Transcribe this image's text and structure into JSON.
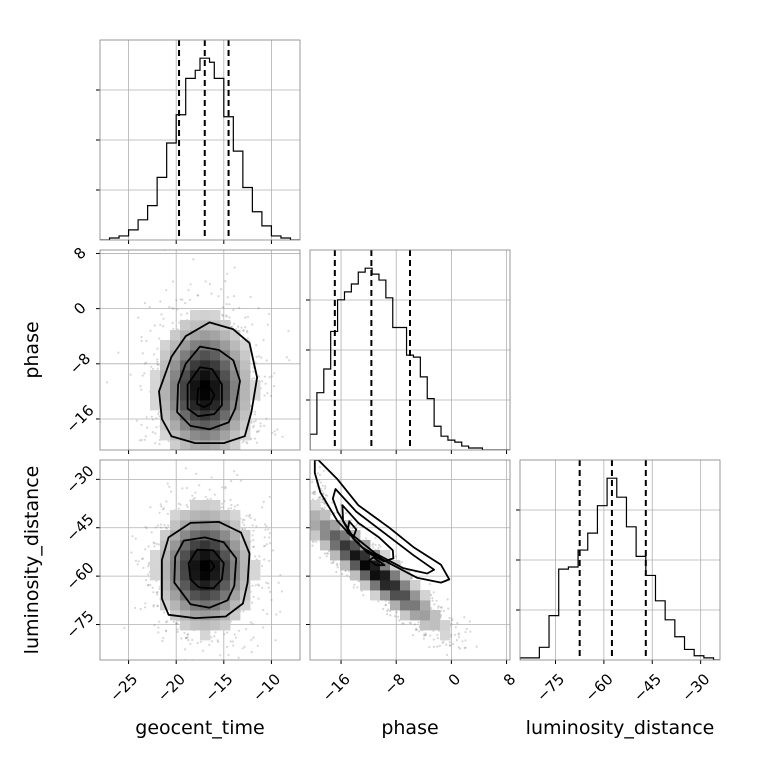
{
  "chart_data": {
    "type": "corner",
    "grid": true,
    "parameters": [
      "geocent_time",
      "phase",
      "luminosity_distance"
    ],
    "axis_labels": {
      "geocent_time": "geocent_time",
      "phase": "phase",
      "luminosity_distance": "luminosity_distance"
    },
    "ranges": {
      "geocent_time": [
        -28,
        -7
      ],
      "phase": [
        -20.5,
        8.5
      ],
      "luminosity_distance": [
        -86,
        -24
      ]
    },
    "ticks": {
      "geocent_time": [
        -25,
        -20,
        -15,
        -10
      ],
      "phase": [
        -16,
        -8,
        0,
        8
      ],
      "luminosity_distance": [
        -75,
        -60,
        -45,
        -30
      ]
    },
    "quantiles": {
      "geocent_time": [
        -19.7,
        -17.0,
        -14.5
      ],
      "phase": [
        -16.9,
        -11.6,
        -6.0
      ],
      "luminosity_distance": [
        -67.5,
        -57.5,
        -47.0
      ]
    },
    "histograms": {
      "geocent_time": {
        "bin_edges": [
          -28,
          -27,
          -26,
          -25,
          -24,
          -23,
          -22,
          -21,
          -20,
          -19,
          -18,
          -17.5,
          -17,
          -16.5,
          -16,
          -15,
          -14,
          -13,
          -12,
          -11,
          -10,
          -9,
          -8,
          -7
        ],
        "counts": [
          0,
          1,
          2,
          5,
          10,
          17,
          31,
          48,
          62,
          80,
          84,
          90,
          90,
          88,
          80,
          61,
          44,
          26,
          14,
          7,
          2,
          1,
          0
        ]
      },
      "phase": {
        "bin_edges": [
          -20.5,
          -19.5,
          -18.5,
          -17.5,
          -16.5,
          -15.5,
          -14.5,
          -13.5,
          -12.5,
          -11.5,
          -10.5,
          -9.5,
          -8.5,
          -7.5,
          -6.5,
          -5.5,
          -4.5,
          -3.5,
          -2.5,
          -1.5,
          -0.5,
          0.5,
          1.5,
          2.5,
          3.5,
          4.5,
          5.5,
          6.5,
          7.5,
          8.5
        ],
        "counts": [
          8,
          29,
          41,
          60,
          76,
          80,
          84,
          90,
          92,
          89,
          86,
          77,
          62,
          62,
          48,
          47,
          37,
          26,
          12,
          7,
          5,
          4,
          2,
          1,
          1,
          0,
          0,
          0,
          0
        ]
      },
      "luminosity_distance": {
        "bin_edges": [
          -86,
          -83,
          -80,
          -77,
          -74,
          -71,
          -68,
          -65,
          -62,
          -59,
          -56,
          -53,
          -50,
          -47,
          -44,
          -41,
          -38,
          -35,
          -32,
          -29,
          -26,
          -24
        ],
        "counts": [
          1,
          1,
          6,
          21,
          43,
          44,
          52,
          60,
          73,
          86,
          77,
          63,
          49,
          40,
          28,
          19,
          11,
          5,
          2,
          1,
          0
        ]
      }
    },
    "contours": {
      "phase_vs_geocent_time": [
        {
          "level": 1,
          "points": [
            [
              -21.5,
              -16
            ],
            [
              -21.8,
              -12
            ],
            [
              -20.5,
              -7
            ],
            [
              -19,
              -4
            ],
            [
              -16.5,
              -2
            ],
            [
              -14,
              -3
            ],
            [
              -12.3,
              -5
            ],
            [
              -11.5,
              -10
            ],
            [
              -12.1,
              -15
            ],
            [
              -12.8,
              -18.5
            ],
            [
              -15,
              -19.5
            ],
            [
              -18,
              -19.5
            ],
            [
              -20.5,
              -18.5
            ]
          ]
        },
        {
          "level": 2,
          "points": [
            [
              -19.9,
              -15
            ],
            [
              -19.8,
              -11
            ],
            [
              -19,
              -8
            ],
            [
              -17.5,
              -5.5
            ],
            [
              -15.5,
              -6
            ],
            [
              -14,
              -7.5
            ],
            [
              -13.3,
              -10.5
            ],
            [
              -13.8,
              -14.5
            ],
            [
              -14.5,
              -16.5
            ],
            [
              -16.5,
              -17.5
            ],
            [
              -18.5,
              -17
            ]
          ]
        },
        {
          "level": 3,
          "points": [
            [
              -18.8,
              -14.5
            ],
            [
              -18.8,
              -11
            ],
            [
              -17.5,
              -8.5
            ],
            [
              -16.2,
              -8.8
            ],
            [
              -15.2,
              -11
            ],
            [
              -15.2,
              -14
            ],
            [
              -16,
              -15.3
            ],
            [
              -17.7,
              -15.6
            ]
          ]
        },
        {
          "level": 4,
          "points": [
            [
              -17.8,
              -13.8
            ],
            [
              -17.7,
              -11.6
            ],
            [
              -16.6,
              -11.2
            ],
            [
              -16,
              -12.5
            ],
            [
              -16.4,
              -13.8
            ],
            [
              -17.1,
              -14.3
            ]
          ]
        }
      ],
      "luminosity_distance_vs_geocent_time": [
        {
          "level": 1,
          "points": [
            [
              -21.5,
              -67
            ],
            [
              -21.5,
              -55
            ],
            [
              -20.8,
              -48
            ],
            [
              -18.5,
              -43.5
            ],
            [
              -15.5,
              -43.2
            ],
            [
              -13.2,
              -46.5
            ],
            [
              -12.3,
              -53
            ],
            [
              -12.5,
              -62
            ],
            [
              -13,
              -68.5
            ],
            [
              -14.8,
              -72.5
            ],
            [
              -18,
              -73
            ],
            [
              -20.8,
              -72
            ]
          ]
        },
        {
          "level": 2,
          "points": [
            [
              -20.2,
              -62
            ],
            [
              -20.1,
              -54
            ],
            [
              -19.2,
              -49
            ],
            [
              -17,
              -48
            ],
            [
              -15,
              -49.5
            ],
            [
              -13.7,
              -54.5
            ],
            [
              -13.9,
              -63
            ],
            [
              -14.6,
              -67.5
            ],
            [
              -16.5,
              -69.8
            ],
            [
              -18.5,
              -68.7
            ]
          ]
        },
        {
          "level": 3,
          "points": [
            [
              -18.5,
              -61
            ],
            [
              -18.7,
              -56
            ],
            [
              -17.8,
              -51.8
            ],
            [
              -16.1,
              -52
            ],
            [
              -15,
              -56
            ],
            [
              -15.2,
              -61
            ],
            [
              -16.1,
              -63.8
            ],
            [
              -17.6,
              -63.5
            ]
          ]
        },
        {
          "level": 4,
          "points": [
            [
              -17.2,
              -58
            ],
            [
              -17.2,
              -55.5
            ],
            [
              -16.4,
              -55.2
            ],
            [
              -16,
              -57
            ],
            [
              -16.4,
              -58.5
            ]
          ]
        }
      ],
      "luminosity_distance_vs_phase": [
        {
          "level": 1,
          "points": [
            [
              -19.8,
              -24
            ],
            [
              -19.3,
              -24
            ],
            [
              -16.5,
              -30
            ],
            [
              -13.5,
              -38
            ],
            [
              -9,
              -45
            ],
            [
              -5.5,
              -51
            ],
            [
              -1.5,
              -56.5
            ],
            [
              -0.3,
              -61
            ],
            [
              -1.5,
              -62
            ],
            [
              -5,
              -60.5
            ],
            [
              -9,
              -56
            ],
            [
              -13,
              -51
            ],
            [
              -16.5,
              -43
            ],
            [
              -19,
              -34
            ],
            [
              -19.8,
              -28
            ]
          ]
        },
        {
          "level": 2,
          "points": [
            [
              -16.8,
              -33
            ],
            [
              -13.8,
              -40
            ],
            [
              -9.5,
              -47
            ],
            [
              -5.5,
              -53.5
            ],
            [
              -2.5,
              -58
            ],
            [
              -3.5,
              -59.2
            ],
            [
              -7,
              -57.5
            ],
            [
              -11,
              -53
            ],
            [
              -14.5,
              -47
            ],
            [
              -16.5,
              -40
            ],
            [
              -17.2,
              -36
            ]
          ]
        },
        {
          "level": 3,
          "points": [
            [
              -15.8,
              -38
            ],
            [
              -13.5,
              -43.5
            ],
            [
              -10.5,
              -48
            ],
            [
              -8.5,
              -52
            ],
            [
              -8.4,
              -54.5
            ],
            [
              -9.8,
              -55.4
            ],
            [
              -12.2,
              -52.6
            ],
            [
              -14.3,
              -48.2
            ],
            [
              -15.7,
              -43
            ]
          ]
        },
        {
          "level": 4,
          "points": [
            [
              -14.8,
              -43
            ],
            [
              -13.8,
              -45.5
            ],
            [
              -14.2,
              -48
            ],
            [
              -15.1,
              -46.5
            ]
          ]
        },
        {
          "level": 4,
          "points": [
            [
              -11.3,
              -54.2
            ],
            [
              -10.2,
              -55.8
            ],
            [
              -9.7,
              -56.6
            ],
            [
              -10.9,
              -56.6
            ],
            [
              -11.9,
              -55.1
            ]
          ]
        }
      ]
    }
  }
}
